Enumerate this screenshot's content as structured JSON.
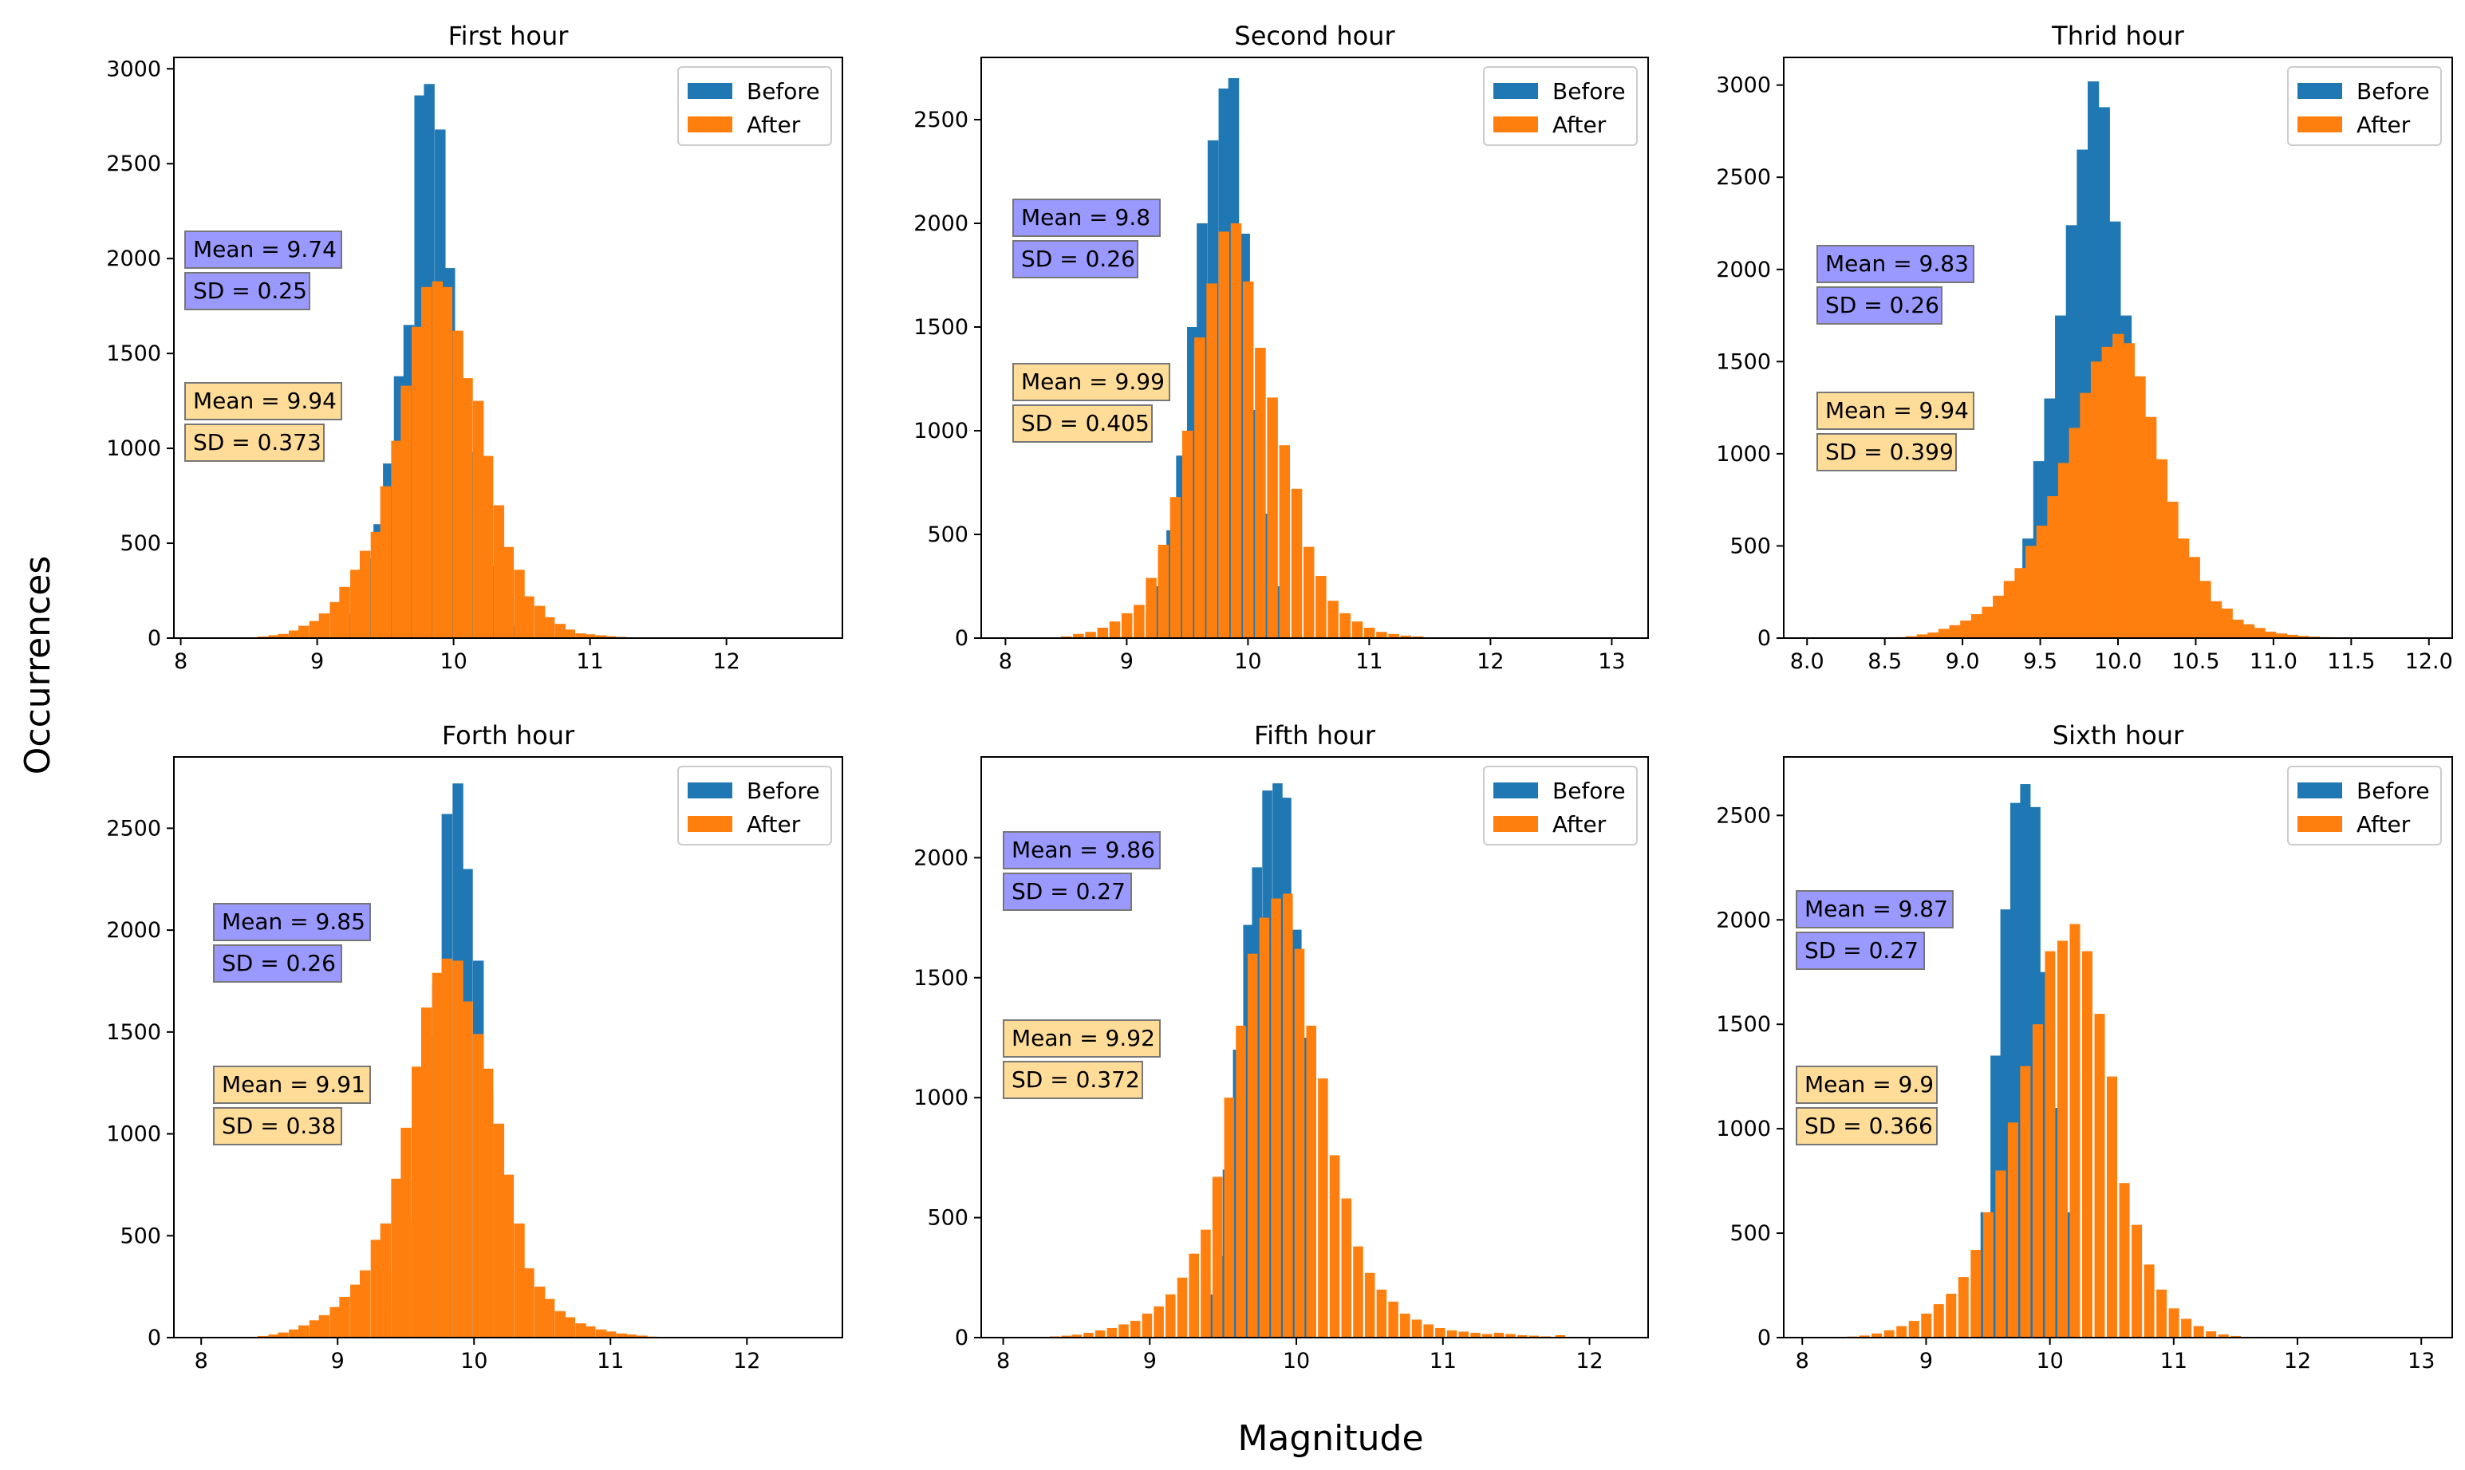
{
  "figure": {
    "xlabel": "Magnitude",
    "ylabel": "Occurrences",
    "colors": {
      "before": "#1f77b4",
      "after": "#ff7f0e",
      "before_box": "#9999ff",
      "after_box": "#ffdd99"
    }
  },
  "chart_data": [
    {
      "type": "bar",
      "title": "First hour",
      "xlim": [
        7.95,
        12.85
      ],
      "ylim": [
        0,
        3060
      ],
      "xticks": [
        8,
        9,
        10,
        11,
        12
      ],
      "xtick_labels": [
        "8",
        "9",
        "10",
        "11",
        "12"
      ],
      "yticks": [
        0,
        500,
        1000,
        1500,
        2000,
        2500,
        3000
      ],
      "ytick_labels": [
        "0",
        "500",
        "1000",
        "1500",
        "2000",
        "2500",
        "3000"
      ],
      "legend": [
        "Before",
        "After"
      ],
      "legend_position": "top-right",
      "bin_width": 0.075,
      "series": [
        {
          "name": "Before",
          "x": [
            9.15,
            9.22,
            9.3,
            9.37,
            9.45,
            9.52,
            9.6,
            9.67,
            9.75,
            9.82,
            9.9,
            9.97,
            10.05,
            10.12,
            10.2,
            10.27,
            10.35,
            10.42
          ],
          "values": [
            60,
            130,
            250,
            420,
            600,
            920,
            1380,
            1650,
            2860,
            2920,
            2680,
            1950,
            1330,
            980,
            660,
            380,
            170,
            70
          ]
        },
        {
          "name": "After",
          "x": [
            8.6,
            8.68,
            8.75,
            8.83,
            8.9,
            8.98,
            9.05,
            9.13,
            9.2,
            9.28,
            9.35,
            9.43,
            9.5,
            9.58,
            9.65,
            9.73,
            9.8,
            9.88,
            9.95,
            10.03,
            10.1,
            10.18,
            10.25,
            10.33,
            10.4,
            10.48,
            10.55,
            10.63,
            10.7,
            10.78,
            10.85,
            10.93,
            11.0,
            11.08,
            11.15,
            11.23,
            11.3,
            11.38
          ],
          "values": [
            8,
            15,
            22,
            40,
            65,
            90,
            130,
            190,
            270,
            360,
            460,
            560,
            800,
            1040,
            1330,
            1640,
            1850,
            1880,
            1850,
            1620,
            1370,
            1250,
            960,
            700,
            480,
            360,
            220,
            170,
            110,
            75,
            45,
            25,
            20,
            15,
            10,
            6,
            4,
            2
          ]
        }
      ],
      "annotations": [
        {
          "series": "Before",
          "mean": "Mean = 9.74",
          "sd": "SD = 0.25"
        },
        {
          "series": "After",
          "mean": "Mean = 9.94",
          "sd": "SD = 0.373"
        }
      ]
    },
    {
      "type": "bar",
      "title": "Second hour",
      "xlim": [
        7.8,
        13.3
      ],
      "ylim": [
        0,
        2800
      ],
      "xticks": [
        8,
        9,
        10,
        11,
        12,
        13
      ],
      "xtick_labels": [
        "8",
        "9",
        "10",
        "11",
        "12",
        "13"
      ],
      "yticks": [
        0,
        500,
        1000,
        1500,
        2000,
        2500
      ],
      "ytick_labels": [
        "0",
        "500",
        "1000",
        "1500",
        "2000",
        "2500"
      ],
      "legend": [
        "Before",
        "After"
      ],
      "legend_position": "top-right",
      "bin_width": 0.085,
      "series": [
        {
          "name": "Before",
          "x": [
            9.2,
            9.28,
            9.37,
            9.45,
            9.54,
            9.62,
            9.71,
            9.8,
            9.88,
            9.97,
            10.05,
            10.14,
            10.22
          ],
          "values": [
            120,
            250,
            520,
            880,
            1500,
            2000,
            2400,
            2650,
            2700,
            1950,
            1100,
            600,
            250
          ]
        },
        {
          "name": "After",
          "x": [
            8.5,
            8.6,
            8.7,
            8.8,
            8.9,
            9.0,
            9.1,
            9.2,
            9.3,
            9.4,
            9.5,
            9.6,
            9.7,
            9.8,
            9.9,
            10.0,
            10.1,
            10.2,
            10.3,
            10.4,
            10.5,
            10.6,
            10.7,
            10.8,
            10.9,
            11.0,
            11.1,
            11.2,
            11.3,
            11.4,
            11.5
          ],
          "values": [
            8,
            20,
            30,
            50,
            80,
            120,
            160,
            290,
            450,
            680,
            1000,
            1450,
            1710,
            1960,
            2000,
            1720,
            1400,
            1160,
            930,
            720,
            440,
            300,
            180,
            120,
            80,
            50,
            30,
            20,
            12,
            8,
            4
          ]
        }
      ],
      "annotations": [
        {
          "series": "Before",
          "mean": "Mean = 9.8",
          "sd": "SD = 0.26"
        },
        {
          "series": "After",
          "mean": "Mean = 9.99",
          "sd": "SD = 0.405"
        }
      ]
    },
    {
      "type": "bar",
      "title": "Thrid hour",
      "xlim": [
        7.85,
        12.15
      ],
      "ylim": [
        0,
        3150
      ],
      "xticks": [
        8.0,
        8.5,
        9.0,
        9.5,
        10.0,
        10.5,
        11.0,
        11.5,
        12.0
      ],
      "xtick_labels": [
        "8.0",
        "8.5",
        "9.0",
        "9.5",
        "10.0",
        "10.5",
        "11.0",
        "11.5",
        "12.0"
      ],
      "yticks": [
        0,
        500,
        1000,
        1500,
        2000,
        2500,
        3000
      ],
      "ytick_labels": [
        "0",
        "500",
        "1000",
        "1500",
        "2000",
        "2500",
        "3000"
      ],
      "legend": [
        "Before",
        "After"
      ],
      "legend_position": "top-right",
      "bin_width": 0.07,
      "series": [
        {
          "name": "Before",
          "x": [
            9.35,
            9.42,
            9.49,
            9.56,
            9.63,
            9.7,
            9.77,
            9.84,
            9.91,
            9.98,
            10.05,
            10.12,
            10.19
          ],
          "values": [
            200,
            540,
            960,
            1300,
            1750,
            2240,
            2650,
            3020,
            2880,
            2260,
            1750,
            1130,
            570
          ]
        },
        {
          "name": "After",
          "x": [
            8.6,
            8.67,
            8.74,
            8.81,
            8.88,
            8.95,
            9.02,
            9.09,
            9.16,
            9.23,
            9.3,
            9.37,
            9.44,
            9.51,
            9.58,
            9.65,
            9.72,
            9.79,
            9.86,
            9.93,
            10.0,
            10.07,
            10.14,
            10.21,
            10.28,
            10.35,
            10.42,
            10.49,
            10.56,
            10.63,
            10.7,
            10.77,
            10.84,
            10.91,
            10.98,
            11.05,
            11.12,
            11.19,
            11.26,
            11.33,
            11.4
          ],
          "values": [
            5,
            10,
            20,
            30,
            50,
            70,
            95,
            130,
            170,
            230,
            310,
            380,
            500,
            610,
            770,
            950,
            1140,
            1330,
            1500,
            1580,
            1650,
            1600,
            1420,
            1200,
            970,
            740,
            540,
            440,
            310,
            200,
            160,
            100,
            75,
            55,
            35,
            25,
            18,
            12,
            8,
            5,
            3
          ]
        }
      ],
      "annotations": [
        {
          "series": "Before",
          "mean": "Mean = 9.83",
          "sd": "SD = 0.26"
        },
        {
          "series": "After",
          "mean": "Mean = 9.94",
          "sd": "SD = 0.399"
        }
      ]
    },
    {
      "type": "bar",
      "title": "Forth hour",
      "xlim": [
        7.8,
        12.7
      ],
      "ylim": [
        0,
        2850
      ],
      "xticks": [
        8,
        9,
        10,
        11,
        12
      ],
      "xtick_labels": [
        "8",
        "9",
        "10",
        "11",
        "12"
      ],
      "yticks": [
        0,
        500,
        1000,
        1500,
        2000,
        2500
      ],
      "ytick_labels": [
        "0",
        "500",
        "1000",
        "1500",
        "2000",
        "2500"
      ],
      "legend": [
        "Before",
        "After"
      ],
      "legend_position": "top-right",
      "bin_width": 0.075,
      "series": [
        {
          "name": "Before",
          "x": [
            9.35,
            9.43,
            9.5,
            9.58,
            9.65,
            9.73,
            9.8,
            9.88,
            9.95,
            10.03,
            10.1
          ],
          "values": [
            150,
            320,
            580,
            920,
            1480,
            1730,
            2570,
            2720,
            2300,
            1850,
            1200
          ]
        },
        {
          "name": "After",
          "x": [
            8.45,
            8.53,
            8.6,
            8.68,
            8.75,
            8.83,
            8.9,
            8.98,
            9.05,
            9.13,
            9.2,
            9.28,
            9.35,
            9.43,
            9.5,
            9.58,
            9.65,
            9.73,
            9.8,
            9.88,
            9.95,
            10.03,
            10.1,
            10.18,
            10.25,
            10.33,
            10.4,
            10.48,
            10.55,
            10.63,
            10.7,
            10.78,
            10.85,
            10.93,
            11.0,
            11.08,
            11.15,
            11.23,
            11.3
          ],
          "values": [
            8,
            15,
            25,
            40,
            60,
            85,
            110,
            150,
            200,
            260,
            330,
            480,
            560,
            780,
            1030,
            1330,
            1620,
            1790,
            1860,
            1850,
            1650,
            1490,
            1320,
            1050,
            800,
            560,
            340,
            250,
            190,
            130,
            100,
            70,
            55,
            40,
            30,
            20,
            15,
            10,
            5
          ]
        }
      ],
      "annotations": [
        {
          "series": "Before",
          "mean": "Mean = 9.85",
          "sd": "SD = 0.26"
        },
        {
          "series": "After",
          "mean": "Mean = 9.91",
          "sd": "SD = 0.38"
        }
      ]
    },
    {
      "type": "bar",
      "title": "Fifth hour",
      "xlim": [
        7.85,
        12.4
      ],
      "ylim": [
        0,
        2420
      ],
      "xticks": [
        8,
        9,
        10,
        11,
        12
      ],
      "xtick_labels": [
        "8",
        "9",
        "10",
        "11",
        "12"
      ],
      "yticks": [
        0,
        500,
        1000,
        1500,
        2000
      ],
      "ytick_labels": [
        "0",
        "500",
        "1000",
        "1500",
        "2000"
      ],
      "legend": [
        "Before",
        "After"
      ],
      "legend_position": "top-right",
      "bin_width": 0.065,
      "series": [
        {
          "name": "Before",
          "x": [
            9.4,
            9.47,
            9.53,
            9.6,
            9.67,
            9.73,
            9.8,
            9.87,
            9.93,
            10.0,
            10.07
          ],
          "values": [
            180,
            340,
            700,
            1200,
            1720,
            1960,
            2280,
            2310,
            2250,
            1700,
            1250
          ]
        },
        {
          "name": "After",
          "x": [
            8.35,
            8.43,
            8.5,
            8.58,
            8.66,
            8.74,
            8.82,
            8.9,
            8.98,
            9.06,
            9.14,
            9.22,
            9.3,
            9.38,
            9.46,
            9.54,
            9.62,
            9.7,
            9.78,
            9.86,
            9.94,
            10.02,
            10.1,
            10.18,
            10.26,
            10.34,
            10.42,
            10.5,
            10.58,
            10.66,
            10.74,
            10.82,
            10.9,
            10.98,
            11.06,
            11.14,
            11.22,
            11.3,
            11.38,
            11.46,
            11.54,
            11.62,
            11.7,
            11.8,
            11.9
          ],
          "values": [
            5,
            8,
            12,
            20,
            30,
            40,
            55,
            70,
            100,
            130,
            180,
            250,
            350,
            450,
            670,
            1000,
            1300,
            1600,
            1750,
            1830,
            1850,
            1620,
            1300,
            1080,
            760,
            580,
            380,
            270,
            200,
            150,
            100,
            75,
            55,
            40,
            30,
            25,
            20,
            15,
            20,
            15,
            10,
            8,
            5,
            10,
            3
          ]
        }
      ],
      "annotations": [
        {
          "series": "Before",
          "mean": "Mean = 9.86",
          "sd": "SD = 0.27"
        },
        {
          "series": "After",
          "mean": "Mean = 9.92",
          "sd": "SD = 0.372"
        }
      ]
    },
    {
      "type": "bar",
      "title": "Sixth hour",
      "xlim": [
        7.85,
        13.25
      ],
      "ylim": [
        0,
        2780
      ],
      "xticks": [
        8,
        9,
        10,
        11,
        12,
        13
      ],
      "xtick_labels": [
        "8",
        "9",
        "10",
        "11",
        "12",
        "13"
      ],
      "yticks": [
        0,
        500,
        1000,
        1500,
        2000,
        2500
      ],
      "ytick_labels": [
        "0",
        "500",
        "1000",
        "1500",
        "2000",
        "2500"
      ],
      "legend": [
        "Before",
        "After"
      ],
      "legend_position": "top-right",
      "bin_width": 0.08,
      "series": [
        {
          "name": "Before",
          "x": [
            9.4,
            9.48,
            9.56,
            9.64,
            9.72,
            9.8,
            9.88,
            9.96,
            10.04,
            10.12
          ],
          "values": [
            250,
            600,
            1350,
            2050,
            2560,
            2650,
            2540,
            1750,
            1100,
            600
          ]
        },
        {
          "name": "After",
          "x": [
            8.4,
            8.5,
            8.6,
            8.7,
            8.8,
            8.9,
            9.0,
            9.1,
            9.2,
            9.3,
            9.4,
            9.5,
            9.6,
            9.7,
            9.8,
            9.9,
            10.0,
            10.1,
            10.2,
            10.3,
            10.4,
            10.5,
            10.6,
            10.7,
            10.8,
            10.9,
            11.0,
            11.1,
            11.2,
            11.3,
            11.4,
            11.5
          ],
          "values": [
            5,
            10,
            20,
            35,
            55,
            80,
            115,
            160,
            210,
            290,
            420,
            600,
            800,
            1030,
            1300,
            1500,
            1850,
            1900,
            1980,
            1850,
            1550,
            1250,
            740,
            540,
            350,
            230,
            140,
            90,
            55,
            30,
            15,
            8
          ]
        }
      ],
      "annotations": [
        {
          "series": "Before",
          "mean": "Mean = 9.87",
          "sd": "SD = 0.27"
        },
        {
          "series": "After",
          "mean": "Mean = 9.9",
          "sd": "SD = 0.366"
        }
      ]
    }
  ]
}
